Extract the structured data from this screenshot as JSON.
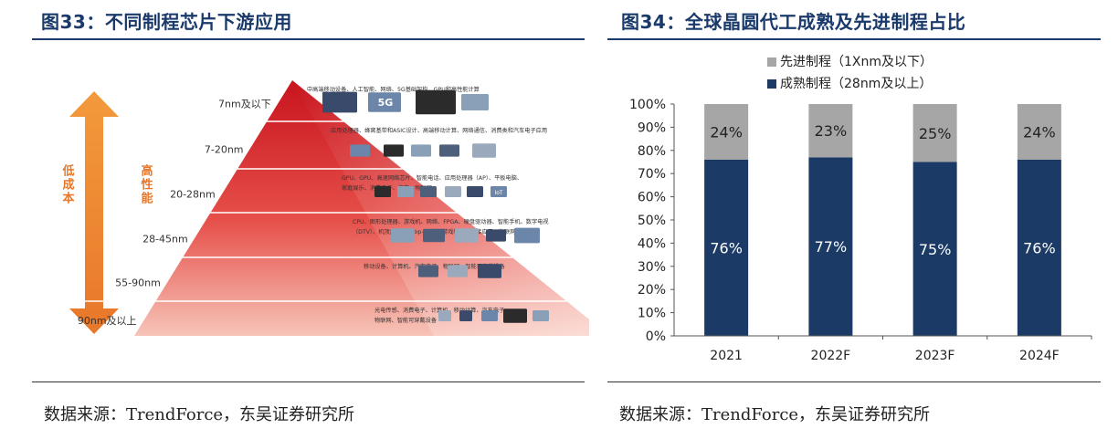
{
  "left": {
    "title": "图33：不同制程芯片下游应用",
    "source": "数据来源：TrendForce，东吴证券研究所",
    "arrow_left_label": "低成本",
    "arrow_right_label": "高性能",
    "tiers": [
      {
        "node": "7nm及以下",
        "desc": [
          "中高端移动设备、人工智能、网络、5G基础架构、GPU和高性能计算"
        ]
      },
      {
        "node": "7-20nm",
        "desc": [
          "应用处理器、蜂窝基带和ASIC设计、高端移动计算、网络通信、消费类和汽车电子应用"
        ]
      },
      {
        "node": "20-28nm",
        "desc": [
          "GPU、GPU、高速网络芯片、智能电话、应用处理器（AP）、平板电脑、",
          "家庭娱乐、消费电子、汽车、物联网"
        ]
      },
      {
        "node": "28-45nm",
        "desc": [
          "CPU、图形处理器、游戏机、网络、FPGA、硬盘驱动器、智能手机、数字电视",
          "（DTV）、机顶盒（Set-Top-Box）、游戏和无线连接应用、物联网、可穿戴"
        ]
      },
      {
        "node": "55-90nm",
        "desc": [
          "移动设备、计算机、汽车电子、物联网、智能可穿戴设备"
        ]
      },
      {
        "node": "90nm及以上",
        "desc": [
          "光电传感、消费电子、计算机、移动计算、汽车电子、",
          "物联网、智能可穿戴设备"
        ]
      }
    ],
    "icon_labels": {
      "five_g": "5G",
      "iot": "IoT"
    }
  },
  "right": {
    "title": "图34：全球晶圆代工成熟及先进制程占比",
    "source": "数据来源：TrendForce，东吴证券研究所",
    "colors": {
      "advanced": "#a6a6a6",
      "mature": "#1b3a66"
    }
  },
  "chart_data": {
    "type": "bar",
    "stacked": true,
    "categories": [
      "2021",
      "2022F",
      "2023F",
      "2024F"
    ],
    "series": [
      {
        "name": "成熟制程（28nm及以上）",
        "values": [
          76,
          77,
          75,
          76
        ],
        "labels": [
          "76%",
          "77%",
          "75%",
          "76%"
        ],
        "color": "#1b3a66"
      },
      {
        "name": "先进制程（1Xnm及以下）",
        "values": [
          24,
          23,
          25,
          24
        ],
        "labels": [
          "24%",
          "23%",
          "25%",
          "24%"
        ],
        "color": "#a6a6a6"
      }
    ],
    "legend_order": [
      1,
      0
    ],
    "yticks": [
      "0%",
      "10%",
      "20%",
      "30%",
      "40%",
      "50%",
      "60%",
      "70%",
      "80%",
      "90%",
      "100%"
    ],
    "ylim": [
      0,
      100
    ],
    "legend_position": "top-left",
    "grid": false
  }
}
